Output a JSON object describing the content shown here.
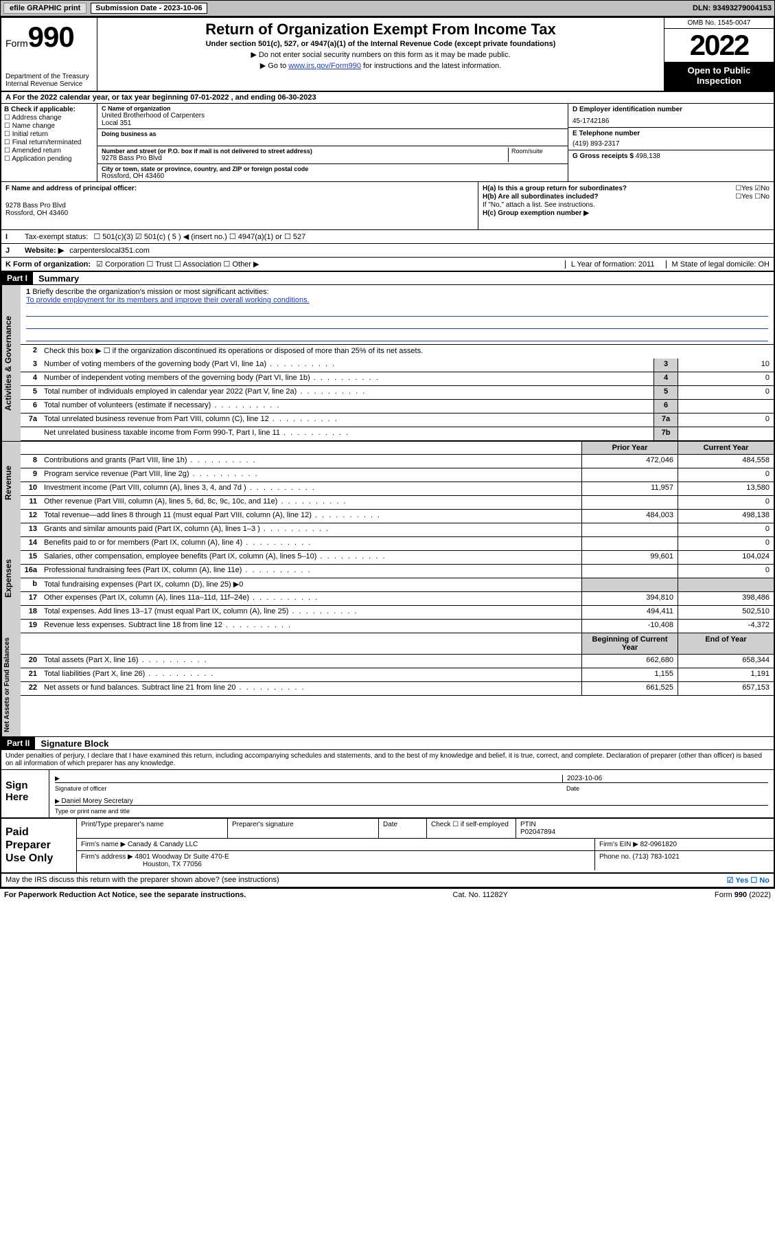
{
  "topbar": {
    "efile": "efile GRAPHIC print",
    "submission_label": "Submission Date - 2023-10-06",
    "dln": "DLN: 93493279004153"
  },
  "header": {
    "form_prefix": "Form",
    "form_number": "990",
    "dept": "Department of the Treasury",
    "irs": "Internal Revenue Service",
    "title": "Return of Organization Exempt From Income Tax",
    "sub": "Under section 501(c), 527, or 4947(a)(1) of the Internal Revenue Code (except private foundations)",
    "line1": "▶ Do not enter social security numbers on this form as it may be made public.",
    "line2_pre": "▶ Go to ",
    "line2_link": "www.irs.gov/Form990",
    "line2_post": " for instructions and the latest information.",
    "omb": "OMB No. 1545-0047",
    "year": "2022",
    "open": "Open to Public Inspection"
  },
  "rowA": "A For the 2022 calendar year, or tax year beginning 07-01-2022  , and ending 06-30-2023",
  "colB": {
    "hdr": "B Check if applicable:",
    "items": [
      "Address change",
      "Name change",
      "Initial return",
      "Final return/terminated",
      "Amended return",
      "Application pending"
    ]
  },
  "colC": {
    "name_lbl": "C Name of organization",
    "name": "United Brotherhood of Carpenters",
    "name2": "Local 351",
    "dba_lbl": "Doing business as",
    "addr_lbl": "Number and street (or P.O. box if mail is not delivered to street address)",
    "room_lbl": "Room/suite",
    "addr": "9278 Bass Pro Blvd",
    "city_lbl": "City or town, state or province, country, and ZIP or foreign postal code",
    "city": "Rossford, OH  43460"
  },
  "colD": {
    "ein_lbl": "D Employer identification number",
    "ein": "45-1742186",
    "tel_lbl": "E Telephone number",
    "tel": "(419) 893-2317",
    "gross_lbl": "G Gross receipts $",
    "gross": "498,138"
  },
  "colF": {
    "lbl": "F Name and address of principal officer:",
    "addr1": "9278 Bass Pro Blvd",
    "addr2": "Rossford, OH  43460"
  },
  "colH": {
    "ha": "H(a) Is this a group return for subordinates?",
    "ha_ans": "☐Yes ☑No",
    "hb": "H(b) Are all subordinates included?",
    "hb_ans": "☐Yes ☐No",
    "hb_note": "If \"No,\" attach a list. See instructions.",
    "hc": "H(c) Group exemption number ▶"
  },
  "rowI": {
    "lbl": "Tax-exempt status:",
    "opts": "☐ 501(c)(3)   ☑ 501(c) ( 5 ) ◀ (insert no.)   ☐ 4947(a)(1) or   ☐ 527"
  },
  "rowJ": {
    "lbl": "Website: ▶",
    "val": "carpenterslocal351.com"
  },
  "rowK": {
    "lbl": "K Form of organization:",
    "opts": "☑ Corporation  ☐ Trust  ☐ Association  ☐ Other ▶",
    "L": "L Year of formation: 2011",
    "M": "M State of legal domicile: OH"
  },
  "part1": {
    "hdr": "Part I",
    "title": "Summary",
    "q1_lbl": "1",
    "q1": "Briefly describe the organization's mission or most significant activities:",
    "mission": "To provide employment for its members and improve their overall working conditions.",
    "q2_lbl": "2",
    "q2": "Check this box ▶ ☐ if the organization discontinued its operations or disposed of more than 25% of its net assets.",
    "gov": [
      {
        "n": "3",
        "d": "Number of voting members of the governing body (Part VI, line 1a)",
        "b": "3",
        "v": "10"
      },
      {
        "n": "4",
        "d": "Number of independent voting members of the governing body (Part VI, line 1b)",
        "b": "4",
        "v": "0"
      },
      {
        "n": "5",
        "d": "Total number of individuals employed in calendar year 2022 (Part V, line 2a)",
        "b": "5",
        "v": "0"
      },
      {
        "n": "6",
        "d": "Total number of volunteers (estimate if necessary)",
        "b": "6",
        "v": ""
      },
      {
        "n": "7a",
        "d": "Total unrelated business revenue from Part VIII, column (C), line 12",
        "b": "7a",
        "v": "0"
      },
      {
        "n": "",
        "d": "Net unrelated business taxable income from Form 990-T, Part I, line 11",
        "b": "7b",
        "v": ""
      }
    ],
    "col_prior": "Prior Year",
    "col_current": "Current Year",
    "rev": [
      {
        "n": "8",
        "d": "Contributions and grants (Part VIII, line 1h)",
        "p": "472,046",
        "c": "484,558"
      },
      {
        "n": "9",
        "d": "Program service revenue (Part VIII, line 2g)",
        "p": "",
        "c": "0"
      },
      {
        "n": "10",
        "d": "Investment income (Part VIII, column (A), lines 3, 4, and 7d )",
        "p": "11,957",
        "c": "13,580"
      },
      {
        "n": "11",
        "d": "Other revenue (Part VIII, column (A), lines 5, 6d, 8c, 9c, 10c, and 11e)",
        "p": "",
        "c": "0"
      },
      {
        "n": "12",
        "d": "Total revenue—add lines 8 through 11 (must equal Part VIII, column (A), line 12)",
        "p": "484,003",
        "c": "498,138"
      }
    ],
    "exp": [
      {
        "n": "13",
        "d": "Grants and similar amounts paid (Part IX, column (A), lines 1–3 )",
        "p": "",
        "c": "0"
      },
      {
        "n": "14",
        "d": "Benefits paid to or for members (Part IX, column (A), line 4)",
        "p": "",
        "c": "0"
      },
      {
        "n": "15",
        "d": "Salaries, other compensation, employee benefits (Part IX, column (A), lines 5–10)",
        "p": "99,601",
        "c": "104,024"
      },
      {
        "n": "16a",
        "d": "Professional fundraising fees (Part IX, column (A), line 11e)",
        "p": "",
        "c": "0"
      },
      {
        "n": "b",
        "d": "Total fundraising expenses (Part IX, column (D), line 25) ▶0",
        "p": "",
        "c": "",
        "noval": true
      },
      {
        "n": "17",
        "d": "Other expenses (Part IX, column (A), lines 11a–11d, 11f–24e)",
        "p": "394,810",
        "c": "398,486"
      },
      {
        "n": "18",
        "d": "Total expenses. Add lines 13–17 (must equal Part IX, column (A), line 25)",
        "p": "494,411",
        "c": "502,510"
      },
      {
        "n": "19",
        "d": "Revenue less expenses. Subtract line 18 from line 12",
        "p": "-10,408",
        "c": "-4,372"
      }
    ],
    "col_beg": "Beginning of Current Year",
    "col_end": "End of Year",
    "net": [
      {
        "n": "20",
        "d": "Total assets (Part X, line 16)",
        "p": "662,680",
        "c": "658,344"
      },
      {
        "n": "21",
        "d": "Total liabilities (Part X, line 26)",
        "p": "1,155",
        "c": "1,191"
      },
      {
        "n": "22",
        "d": "Net assets or fund balances. Subtract line 21 from line 20",
        "p": "661,525",
        "c": "657,153"
      }
    ],
    "side_gov": "Activities & Governance",
    "side_rev": "Revenue",
    "side_exp": "Expenses",
    "side_net": "Net Assets or Fund Balances"
  },
  "part2": {
    "hdr": "Part II",
    "title": "Signature Block",
    "penalty": "Under penalties of perjury, I declare that I have examined this return, including accompanying schedules and statements, and to the best of my knowledge and belief, it is true, correct, and complete. Declaration of preparer (other than officer) is based on all information of which preparer has any knowledge."
  },
  "sign": {
    "lbl": "Sign Here",
    "sig_lbl": "Signature of officer",
    "date": "2023-10-06",
    "date_lbl": "Date",
    "name": "Daniel Morey Secretary",
    "name_lbl": "Type or print name and title"
  },
  "paid": {
    "lbl": "Paid Preparer Use Only",
    "h1": "Print/Type preparer's name",
    "h2": "Preparer's signature",
    "h3": "Date",
    "h4_pre": "Check ☐ if self-employed",
    "h5": "PTIN",
    "ptin": "P02047894",
    "firm_lbl": "Firm's name   ▶",
    "firm": "Canady & Canady LLC",
    "ein_lbl": "Firm's EIN ▶",
    "ein": "82-0961820",
    "addr_lbl": "Firm's address ▶",
    "addr1": "4801 Woodway Dr Suite 470-E",
    "addr2": "Houston, TX  77056",
    "phone_lbl": "Phone no.",
    "phone": "(713) 783-1021"
  },
  "footer": {
    "q": "May the IRS discuss this return with the preparer shown above? (see instructions)",
    "ans": "☑ Yes  ☐ No",
    "pra": "For Paperwork Reduction Act Notice, see the separate instructions.",
    "cat": "Cat. No. 11282Y",
    "form": "Form 990 (2022)"
  }
}
